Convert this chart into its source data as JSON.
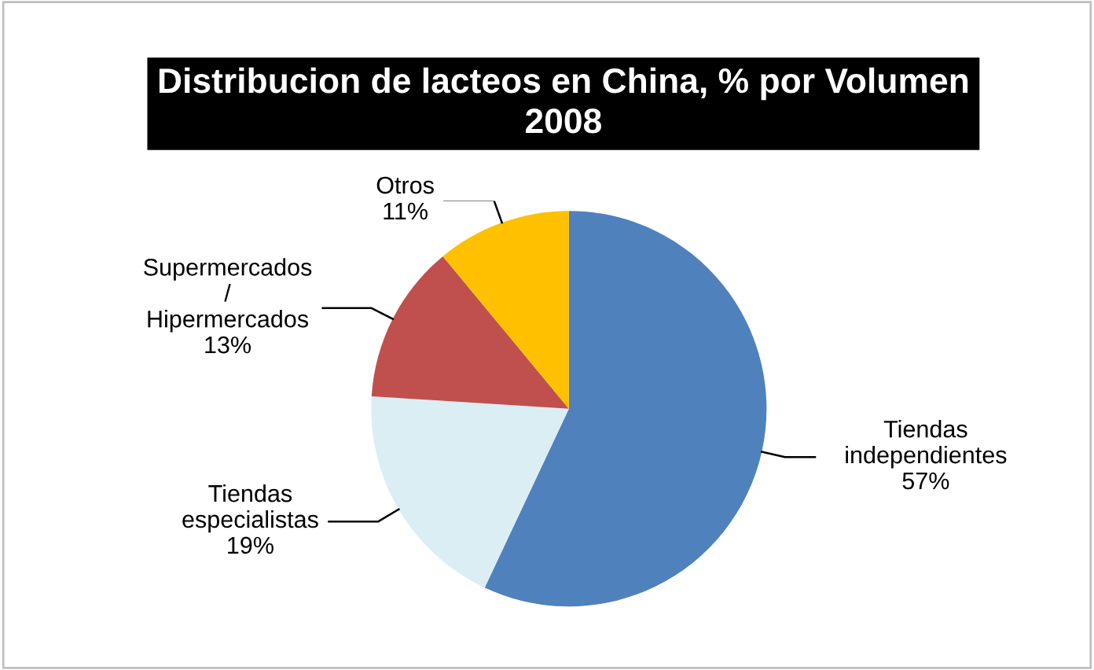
{
  "chart_data": {
    "type": "pie",
    "title": "Distribucion de lacteos en China, % por Volumen\n2008",
    "categories": [
      "Tiendas\nindependientes",
      "Tiendas\nespecialistas",
      "Supermercados\n/\nHipermercados",
      "Otros"
    ],
    "values": [
      57,
      19,
      13,
      11
    ],
    "value_labels": [
      "57%",
      "19%",
      "13%",
      "11%"
    ],
    "colors": [
      "#4f81bd",
      "#dbeef4",
      "#c0504d",
      "#ffc000"
    ]
  }
}
